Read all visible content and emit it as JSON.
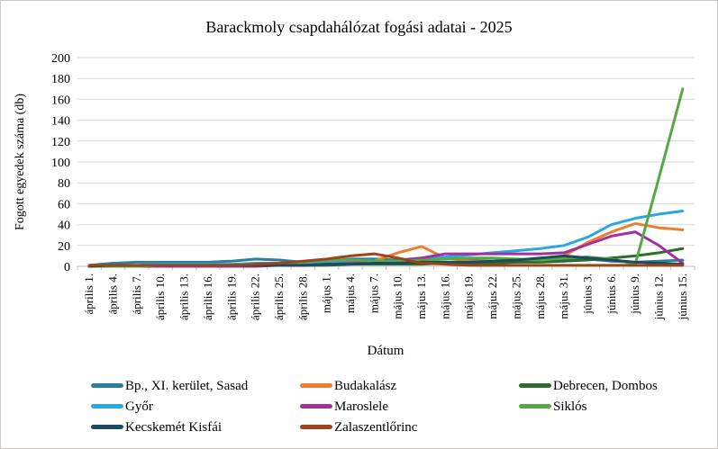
{
  "chart_data": {
    "type": "line",
    "title": "Barackmoly csapdahálózat fogási adatai - 2025",
    "xlabel": "Dátum",
    "ylabel": "Fogott egyedek száma (db)",
    "ylim": [
      0,
      200
    ],
    "ytick_step": 20,
    "grid": true,
    "legend_position": "bottom",
    "categories": [
      "április 1.",
      "április 4.",
      "április 7.",
      "április 10.",
      "április 13.",
      "április 16.",
      "április 19.",
      "április 22.",
      "április 25.",
      "április 28.",
      "május 1.",
      "május 4.",
      "május 7.",
      "május 10.",
      "május 13.",
      "május 16.",
      "május 19.",
      "május 22.",
      "május 25.",
      "május 28.",
      "május 31.",
      "június 3.",
      "június 6.",
      "június 9.",
      "június 12.",
      "június 15."
    ],
    "series": [
      {
        "name": "Bp., XI. kerület, Sasad",
        "color": "#2d7d9d",
        "values": [
          1,
          3,
          4,
          4,
          4,
          4,
          5,
          7,
          6,
          4,
          5,
          7,
          7,
          6,
          8,
          8,
          6,
          5,
          4,
          5,
          6,
          7,
          5,
          4,
          5,
          6
        ]
      },
      {
        "name": "Budakalász",
        "color": "#ed7d31",
        "values": [
          0,
          0,
          0,
          0,
          0,
          0,
          1,
          1,
          1,
          2,
          2,
          3,
          5,
          13,
          19,
          8,
          5,
          5,
          5,
          6,
          10,
          23,
          33,
          41,
          37,
          35
        ]
      },
      {
        "name": "Debrecen, Dombos",
        "color": "#2d6b2f",
        "values": [
          0,
          0,
          0,
          0,
          0,
          0,
          0,
          1,
          1,
          1,
          1,
          2,
          2,
          2,
          2,
          3,
          3,
          3,
          4,
          4,
          5,
          6,
          8,
          10,
          13,
          17
        ]
      },
      {
        "name": "Győr",
        "color": "#29a8e0",
        "values": [
          0,
          1,
          1,
          2,
          2,
          2,
          2,
          3,
          3,
          3,
          4,
          4,
          5,
          5,
          7,
          9,
          11,
          13,
          15,
          17,
          20,
          28,
          40,
          46,
          50,
          53
        ]
      },
      {
        "name": "Maroslele",
        "color": "#a2309e",
        "values": [
          0,
          0,
          0,
          0,
          0,
          0,
          0,
          0,
          1,
          1,
          2,
          3,
          4,
          5,
          8,
          12,
          12,
          12,
          12,
          12,
          13,
          21,
          29,
          33,
          20,
          3
        ]
      },
      {
        "name": "Siklós",
        "color": "#55a944",
        "values": [
          0,
          0,
          0,
          1,
          1,
          1,
          1,
          2,
          3,
          4,
          6,
          6,
          5,
          5,
          6,
          7,
          8,
          8,
          7,
          6,
          8,
          9,
          7,
          2,
          85,
          170
        ]
      },
      {
        "name": "Kecskemét Kisfái",
        "color": "#1c4a5e",
        "values": [
          0,
          1,
          1,
          1,
          1,
          1,
          1,
          1,
          1,
          1,
          2,
          2,
          3,
          3,
          4,
          4,
          4,
          5,
          6,
          8,
          10,
          8,
          6,
          4,
          3,
          2
        ]
      },
      {
        "name": "Zalaszentlőrinc",
        "color": "#9e4417",
        "values": [
          1,
          1,
          1,
          1,
          1,
          1,
          1,
          2,
          3,
          5,
          7,
          10,
          12,
          8,
          3,
          2,
          1,
          1,
          1,
          1,
          1,
          1,
          1,
          1,
          1,
          1
        ]
      }
    ]
  }
}
